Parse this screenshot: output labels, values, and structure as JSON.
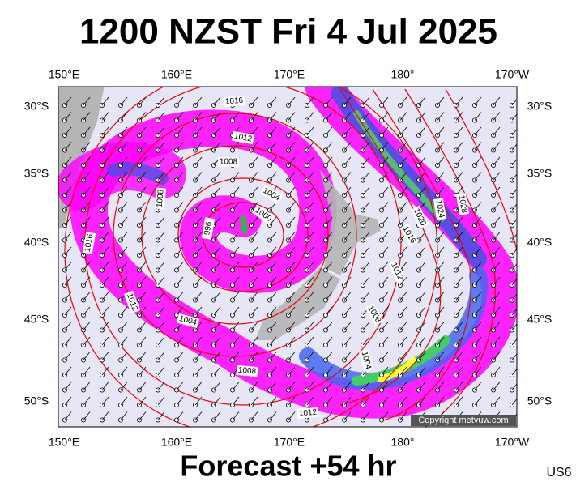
{
  "header": {
    "title": "1200 NZST Fri 4 Jul 2025"
  },
  "axes": {
    "top": [
      "150°E",
      "160°E",
      "170°E",
      "180°",
      "170°W"
    ],
    "bottom": [
      "150°E",
      "160°E",
      "170°E",
      "180°",
      "170°W"
    ],
    "left": [
      "30°S",
      "35°S",
      "40°S",
      "45°S",
      "50°S"
    ],
    "right": [
      "30°S",
      "35°S",
      "40°S",
      "45°S",
      "50°S"
    ]
  },
  "isobar_labels": [
    "1016",
    "1012",
    "1008",
    "1004",
    "1000",
    "996",
    "1008",
    "1016",
    "1012",
    "1004",
    "1008",
    "1012",
    "1004",
    "1008",
    "1012",
    "1016",
    "1020",
    "1024",
    "1028"
  ],
  "copyright": "Copyright metvuw.com",
  "footer": {
    "caption": "Forecast +54 hr",
    "model": "US6"
  }
}
